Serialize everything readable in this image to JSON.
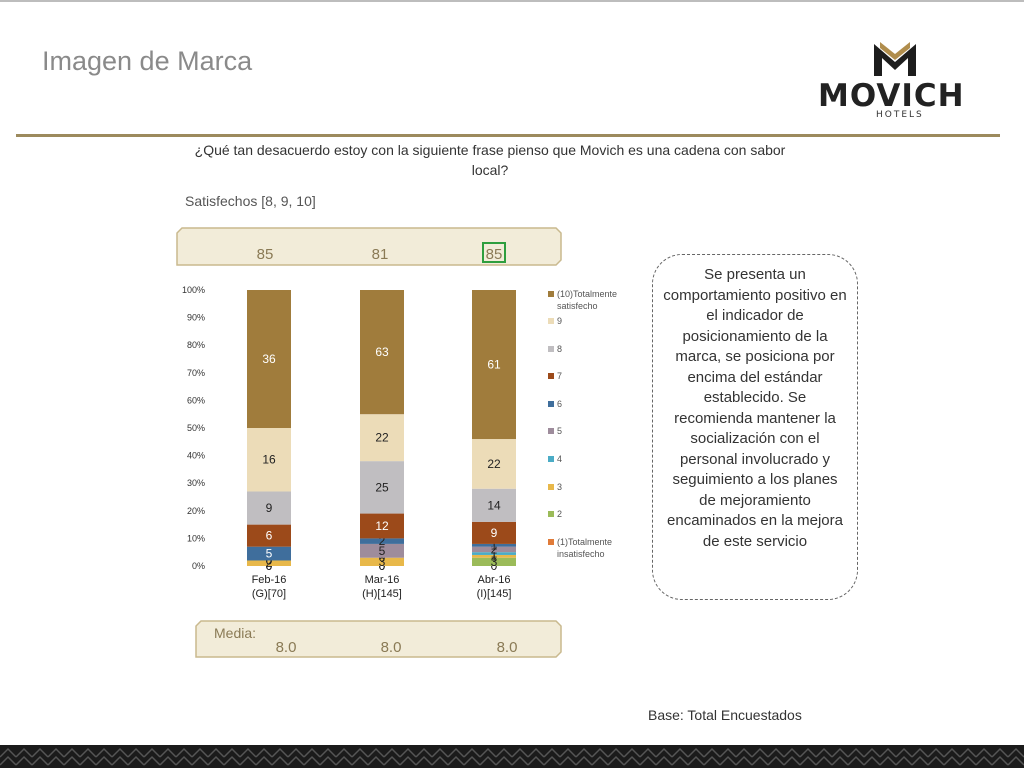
{
  "page": {
    "title": "Imagen de Marca",
    "question": "¿Qué tan desacuerdo estoy con la siguiente frase pienso que Movich es una cadena con sabor local?",
    "satisfied_label": "Satisfechos [8, 9, 10]",
    "note": "Se presenta un comportamiento positivo en el indicador de posicionamiento de la marca, se posiciona por encima del estándar establecido. Se recomienda mantener la socialización con el personal involucrado y seguimiento a los planes de mejoramiento encaminados en la mejora de este servicio",
    "base": "Base: Total Encuestados",
    "media_label": "Media:"
  },
  "logo": {
    "name": "MOVICH",
    "sub": "HOTELS",
    "icon": "movich-m-logo-icon"
  },
  "colors": {
    "gold": "#9c8a5d",
    "band_fill": "#f2ecd9",
    "band_border": "#c9b98e",
    "highlight": "#2e9e3e"
  },
  "chart_data": {
    "type": "bar",
    "stacked": true,
    "categories": [
      "Feb-16\n(G)[70]",
      "Mar-16\n(H)[145]",
      "Abr-16\n(I)[145]"
    ],
    "ylim": [
      0,
      100
    ],
    "yticks": [
      "0%",
      "10%",
      "20%",
      "30%",
      "40%",
      "50%",
      "60%",
      "70%",
      "80%",
      "90%",
      "100%"
    ],
    "satisfechos": [
      "85",
      "81",
      "85"
    ],
    "satisfechos_highlight_index": 2,
    "media": [
      "8.0",
      "8.0",
      "8.0"
    ],
    "series": [
      {
        "name": "(1)Totalmente insatisfecho",
        "color": "#e07b39",
        "values": [
          0,
          0,
          0
        ],
        "labels": [
          "0",
          "0",
          "0"
        ]
      },
      {
        "name": "2",
        "color": "#9bbb59",
        "values": [
          0,
          0,
          3
        ],
        "labels": [
          "0",
          "0",
          "3"
        ]
      },
      {
        "name": "3",
        "color": "#e8b84a",
        "values": [
          2,
          3,
          1
        ],
        "labels": [
          "2",
          "3",
          "1"
        ]
      },
      {
        "name": "4",
        "color": "#4bacc6",
        "values": [
          0,
          0,
          1
        ],
        "labels": [
          "0",
          "0",
          "1"
        ]
      },
      {
        "name": "5",
        "color": "#9e8c9c",
        "values": [
          0,
          5,
          2
        ],
        "labels": [
          "0",
          "5",
          "2"
        ]
      },
      {
        "name": "6",
        "color": "#3f6e9c",
        "values": [
          5,
          2,
          1
        ],
        "labels": [
          "5",
          "2",
          "1"
        ]
      },
      {
        "name": "7",
        "color": "#9c4a1a",
        "values": [
          8,
          9,
          8
        ],
        "labels": [
          "6",
          "12",
          "9"
        ]
      },
      {
        "name": "8",
        "color": "#c0bec1",
        "values": [
          12,
          19,
          12
        ],
        "labels": [
          "9",
          "25",
          "14"
        ]
      },
      {
        "name": "9",
        "color": "#ecdcb8",
        "values": [
          23,
          17,
          18
        ],
        "labels": [
          "16",
          "22",
          "22"
        ]
      },
      {
        "name": "(10)Totalmente satisfecho",
        "color": "#a07c3c",
        "values": [
          50,
          45,
          54
        ],
        "labels": [
          "36",
          "63",
          "61"
        ]
      }
    ],
    "legend": [
      "(10)Totalmente satisfecho",
      "9",
      "8",
      "7",
      "6",
      "5",
      "4",
      "3",
      "2",
      "(1)Totalmente insatisfecho"
    ]
  }
}
